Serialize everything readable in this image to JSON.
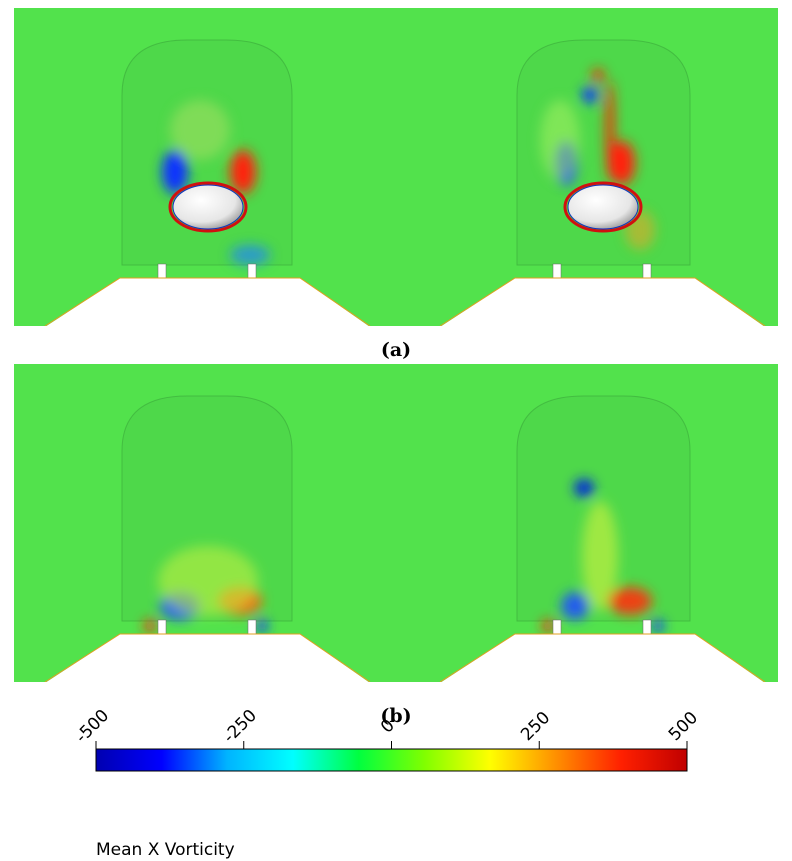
{
  "panels": [
    {
      "caption": "(a)"
    },
    {
      "caption": "(b)"
    }
  ],
  "colorbar": {
    "label": "Mean X Vorticity",
    "lim": [
      -500,
      500
    ],
    "ticks": [
      -500,
      -250,
      0,
      250,
      500
    ],
    "colors": [
      "#0000b0",
      "#0000ff",
      "#00b4ff",
      "#00ffff",
      "#00ff40",
      "#80ff00",
      "#ffff00",
      "#ff9000",
      "#ff2000",
      "#c00000"
    ]
  }
}
